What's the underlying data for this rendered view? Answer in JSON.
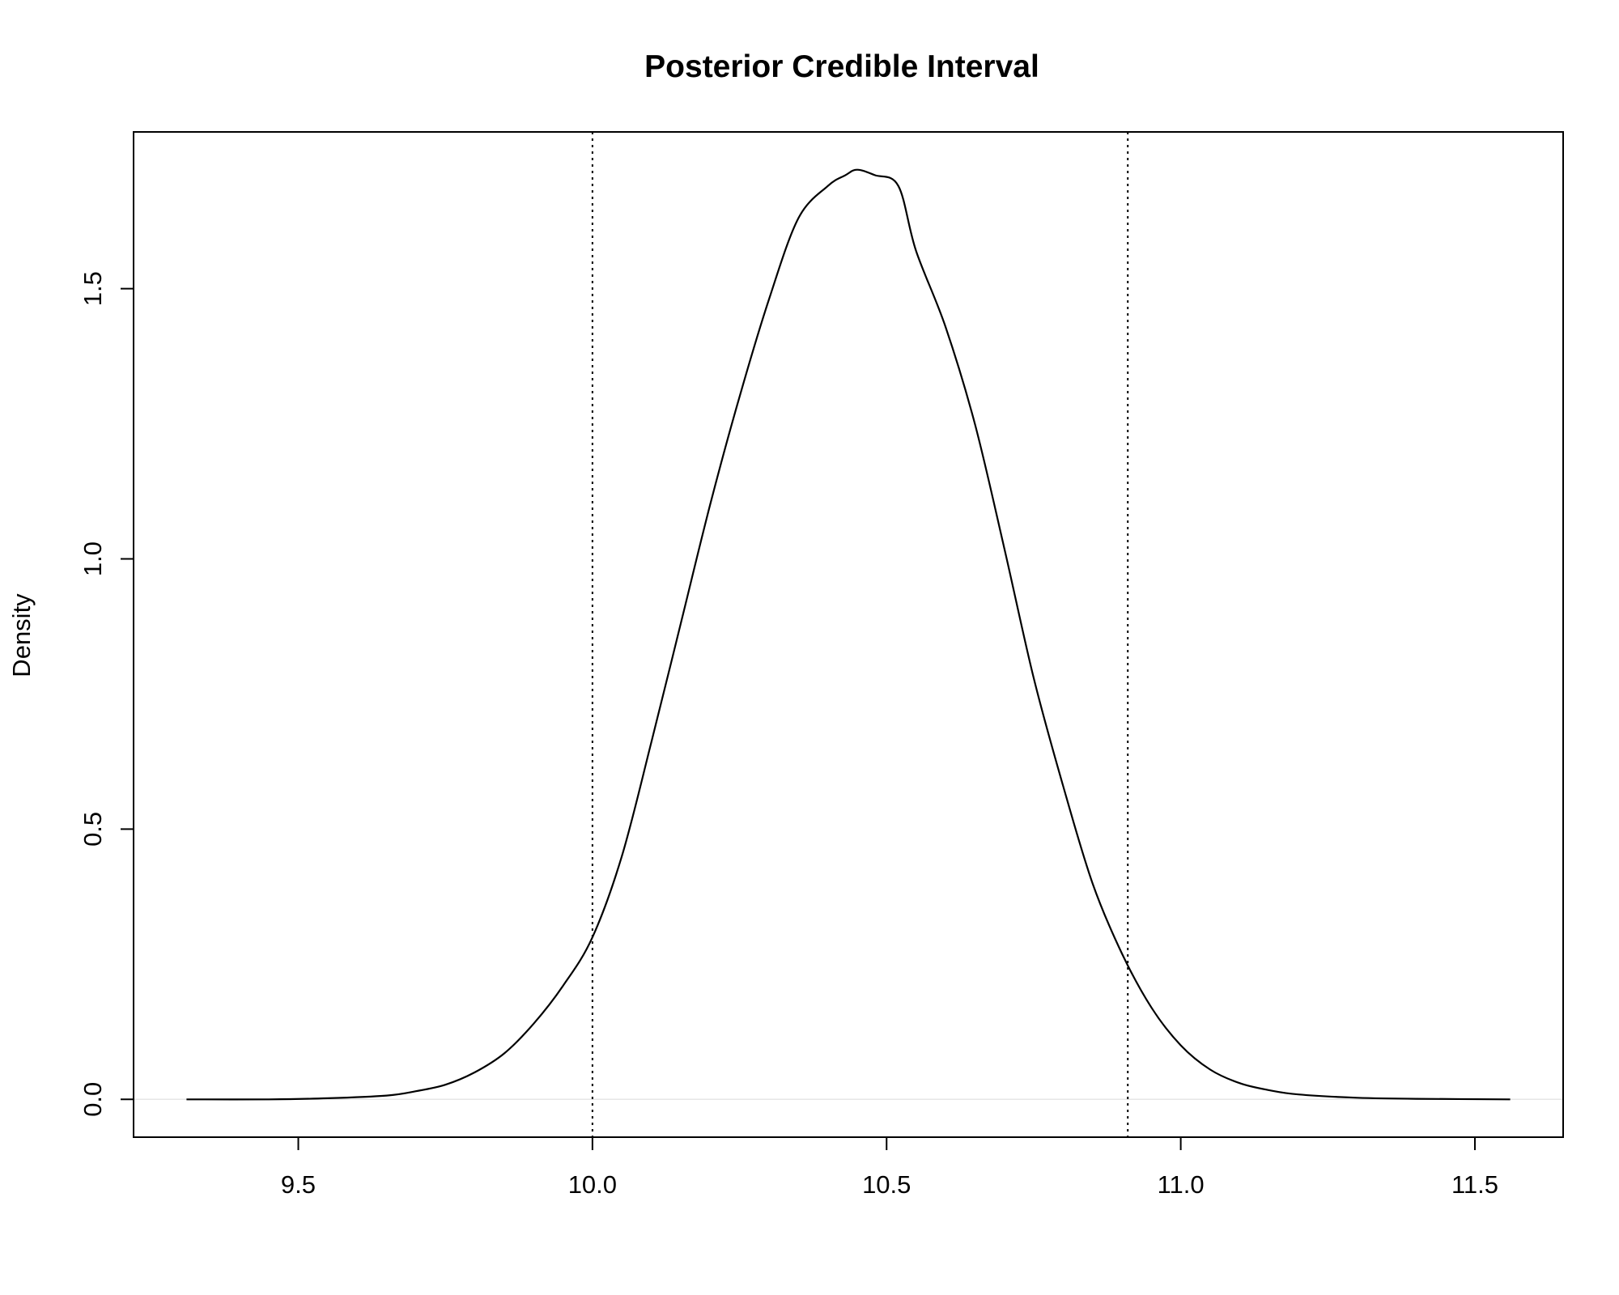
{
  "chart_data": {
    "type": "line",
    "title": "Posterior Credible Interval",
    "xlabel": "",
    "ylabel": "Density",
    "xlim": [
      9.22,
      11.65
    ],
    "ylim": [
      -0.07,
      1.79
    ],
    "x_ticks": [
      9.5,
      10.0,
      10.5,
      11.0,
      11.5
    ],
    "x_tick_labels": [
      "9.5",
      "10.0",
      "10.5",
      "11.0",
      "11.5"
    ],
    "y_ticks": [
      0.0,
      0.5,
      1.0,
      1.5
    ],
    "y_tick_labels": [
      "0.0",
      "0.5",
      "1.0",
      "1.5"
    ],
    "grid": false,
    "series": [
      {
        "type": "line",
        "x": [
          9.31,
          9.45,
          9.55,
          9.65,
          9.7,
          9.75,
          9.8,
          9.85,
          9.9,
          9.95,
          10.0,
          10.05,
          10.1,
          10.15,
          10.2,
          10.25,
          10.3,
          10.35,
          10.4,
          10.43,
          10.45,
          10.48,
          10.52,
          10.55,
          10.6,
          10.65,
          10.7,
          10.75,
          10.8,
          10.85,
          10.9,
          10.95,
          11.0,
          11.05,
          11.1,
          11.15,
          11.2,
          11.3,
          11.4,
          11.56
        ],
        "y": [
          0.0,
          0.0,
          0.002,
          0.007,
          0.015,
          0.027,
          0.05,
          0.085,
          0.14,
          0.21,
          0.3,
          0.45,
          0.66,
          0.88,
          1.1,
          1.3,
          1.48,
          1.63,
          1.69,
          1.71,
          1.72,
          1.71,
          1.69,
          1.57,
          1.43,
          1.25,
          1.02,
          0.78,
          0.58,
          0.4,
          0.27,
          0.17,
          0.1,
          0.055,
          0.03,
          0.017,
          0.009,
          0.003,
          0.001,
          0.0
        ]
      }
    ],
    "vlines": [
      {
        "x": 10.0,
        "style": "dotted"
      },
      {
        "x": 10.91,
        "style": "dotted"
      }
    ],
    "hline": {
      "y": 0.0,
      "color": "#e6e6e6"
    }
  }
}
